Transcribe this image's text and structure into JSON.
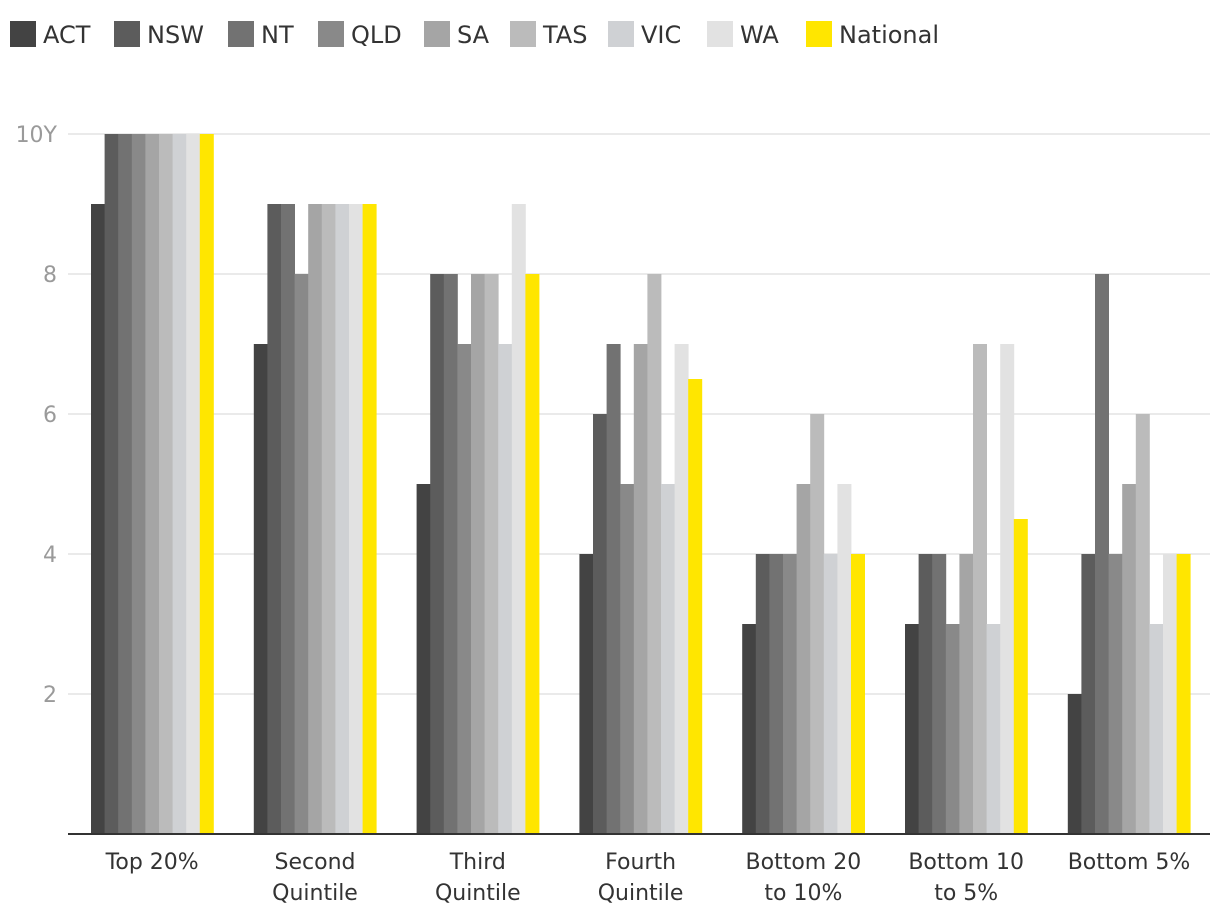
{
  "chart_data": {
    "type": "bar",
    "categories": [
      [
        "Top 20%"
      ],
      [
        "Second",
        "Quintile"
      ],
      [
        "Third",
        "Quintile"
      ],
      [
        "Fourth",
        "Quintile"
      ],
      [
        "Bottom 20",
        "to 10%"
      ],
      [
        "Bottom 10",
        "to 5%"
      ],
      [
        "Bottom 5%"
      ]
    ],
    "series": [
      {
        "name": "ACT",
        "color": "#434343",
        "values": [
          9,
          7,
          5,
          4,
          3,
          3,
          2
        ]
      },
      {
        "name": "NSW",
        "color": "#5c5c5c",
        "values": [
          10,
          9,
          8,
          6,
          4,
          4,
          4
        ]
      },
      {
        "name": "NT",
        "color": "#727272",
        "values": [
          10,
          9,
          8,
          7,
          4,
          4,
          8
        ]
      },
      {
        "name": "QLD",
        "color": "#898989",
        "values": [
          10,
          8,
          7,
          5,
          4,
          3,
          4
        ]
      },
      {
        "name": "SA",
        "color": "#a5a5a5",
        "values": [
          10,
          9,
          8,
          7,
          5,
          4,
          5
        ]
      },
      {
        "name": "TAS",
        "color": "#bbbbbb",
        "values": [
          10,
          9,
          8,
          8,
          6,
          7,
          6
        ]
      },
      {
        "name": "VIC",
        "color": "#cfd1d4",
        "values": [
          10,
          9,
          7,
          5,
          4,
          3,
          3
        ]
      },
      {
        "name": "WA",
        "color": "#e2e2e2",
        "values": [
          10,
          9,
          9,
          7,
          5,
          7,
          4
        ]
      },
      {
        "name": "National",
        "color": "#ffe600",
        "values": [
          10,
          9,
          8,
          6.5,
          4,
          4.5,
          4
        ]
      }
    ],
    "ylim": [
      0,
      10
    ],
    "yticks": [
      {
        "value": 2,
        "label": "2"
      },
      {
        "value": 4,
        "label": "4"
      },
      {
        "value": 6,
        "label": "6"
      },
      {
        "value": 8,
        "label": "8"
      },
      {
        "value": 10,
        "label": "10Y"
      }
    ],
    "grid": true,
    "legend_position": "top-left"
  }
}
